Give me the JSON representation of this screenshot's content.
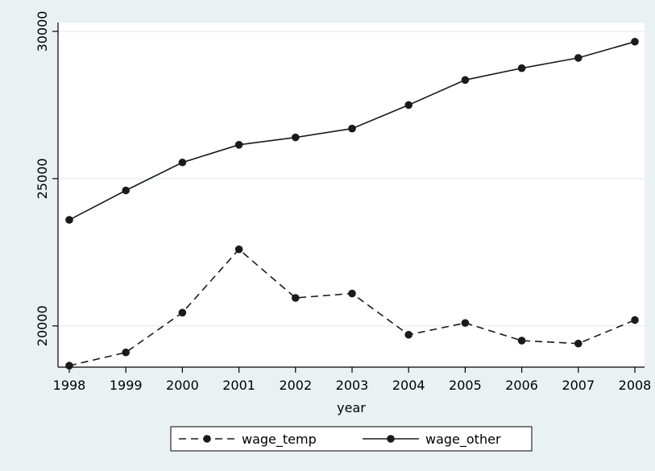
{
  "chart_data": {
    "type": "line",
    "xlabel": "year",
    "ylabel": "",
    "x": [
      1998,
      1999,
      2000,
      2001,
      2002,
      2003,
      2004,
      2005,
      2006,
      2007,
      2008
    ],
    "xlim": [
      1998,
      2008
    ],
    "ylim": [
      18600,
      30300
    ],
    "yticks": [
      20000,
      25000,
      30000
    ],
    "grid": true,
    "legend_position": "bottom",
    "series": [
      {
        "name": "wage_temp",
        "style": "dashed",
        "marker": "circle",
        "color": "#1a1a1a",
        "values": [
          18650,
          19100,
          20450,
          22600,
          20950,
          21100,
          19700,
          20100,
          19500,
          19400,
          20200
        ]
      },
      {
        "name": "wage_other",
        "style": "solid",
        "marker": "circle",
        "color": "#1a1a1a",
        "values": [
          23600,
          24600,
          25550,
          26150,
          26400,
          26700,
          27500,
          28350,
          28750,
          29100,
          29650
        ]
      }
    ]
  },
  "colors": {
    "outer_background": "#eaf1f3",
    "plot_background": "#ffffff",
    "gridline": "#eaf1f3",
    "axis": "#000000"
  }
}
